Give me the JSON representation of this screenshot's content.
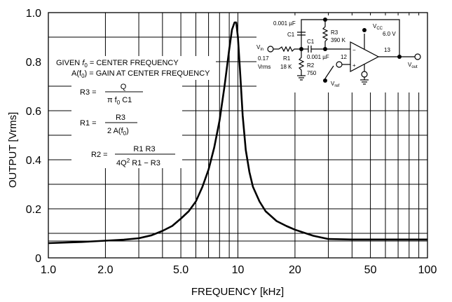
{
  "chart_data": {
    "type": "line",
    "title": "",
    "xlabel": "FREQUENCY [kHz]",
    "ylabel": "OUTPUT [Vrms]",
    "x_scale": "log",
    "xlim": [
      1,
      100
    ],
    "ylim": [
      0,
      1.0
    ],
    "x_tick_labels": [
      "1.0",
      "2.0",
      "5.0",
      "10",
      "20",
      "50",
      "100"
    ],
    "x_tick_values": [
      1,
      2,
      5,
      10,
      20,
      50,
      100
    ],
    "y_tick_labels": [
      "0",
      "0.2",
      "0.4",
      "0.6",
      "0.8",
      "1.0"
    ],
    "y_tick_values": [
      0,
      0.2,
      0.4,
      0.6,
      0.8,
      1.0
    ],
    "grid": true,
    "series": [
      {
        "x": [
          1.0,
          1.5,
          2.0,
          2.5,
          3.0,
          3.5,
          4.0,
          4.5,
          5.0,
          5.5,
          6.0,
          6.5,
          7.0,
          7.5,
          8.0,
          8.5,
          9.0,
          9.3,
          9.6,
          9.8,
          10.0,
          10.3,
          10.6,
          11.0,
          11.5,
          12.0,
          13.0,
          14.0,
          16.0,
          18.0,
          20.0,
          25.0,
          30.0,
          40.0,
          50.0,
          70.0,
          100.0
        ],
        "y": [
          0.06,
          0.065,
          0.07,
          0.074,
          0.08,
          0.092,
          0.11,
          0.13,
          0.16,
          0.19,
          0.23,
          0.29,
          0.36,
          0.45,
          0.56,
          0.7,
          0.85,
          0.93,
          0.96,
          0.96,
          0.9,
          0.74,
          0.58,
          0.44,
          0.35,
          0.29,
          0.23,
          0.19,
          0.15,
          0.13,
          0.115,
          0.09,
          0.077,
          0.075,
          0.075,
          0.075,
          0.075
        ]
      }
    ],
    "annotations": {
      "given": [
        "GIVEN",
        "f",
        "0",
        "= CENTER FREQUENCY"
      ],
      "gain": [
        "A(f",
        "0",
        ") = GAIN AT CENTER FREQUENCY"
      ],
      "r3": [
        "R3 =",
        "Q",
        "π f",
        "0",
        " C1"
      ],
      "r1": [
        "R1 =",
        "R3",
        "2 A(f",
        "0",
        ")"
      ],
      "r2": [
        "R2 =",
        "R1  R3",
        "4Q",
        "2",
        " R1  −  R3"
      ]
    },
    "circuit_labels": {
      "c_top": "0.001 µF",
      "c1_top": "C1",
      "r3_name": "R3",
      "r3_val": "390 K",
      "vcc": "V",
      "vcc_sub": "CC",
      "vcc_val": "6.0 V",
      "vin": "V",
      "vin_sub": "in",
      "vin_amp": "0.17",
      "vin_unit": "Vrms",
      "r1_name": "R1",
      "r1_val": "18 K",
      "c1_mid": "C1",
      "c_mid": "0.001 µF",
      "r2_name": "R2",
      "r2_val": "750",
      "pin12": "12",
      "pin13": "13",
      "minus": "−",
      "plus": "+",
      "vout": "V",
      "vout_sub": "out",
      "vref": "V",
      "vref_sub": "ref"
    }
  }
}
